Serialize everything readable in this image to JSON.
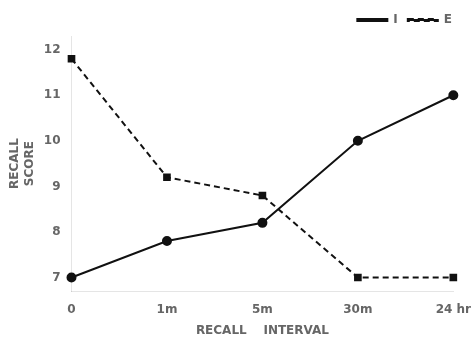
{
  "chart_data": {
    "type": "line",
    "categories": [
      "0",
      "1m",
      "5m",
      "30m",
      "24 hr"
    ],
    "series": [
      {
        "name": "I",
        "color": "#111111",
        "values": [
          7.0,
          7.8,
          8.2,
          10.0,
          11.0
        ],
        "line_style": "solid",
        "marker": "circle"
      },
      {
        "name": "E",
        "color": "#111111",
        "values": [
          11.8,
          9.2,
          8.8,
          7.0,
          7.0
        ],
        "line_style": "dashed",
        "marker": "square"
      }
    ],
    "xlabel": "RECALL    INTERVAL",
    "ylabel": [
      "RECALL",
      "SCORE"
    ],
    "ylim": [
      6.7,
      12.3
    ],
    "yticks": [
      7,
      8,
      9,
      10,
      11,
      12
    ],
    "grid": false,
    "legend": "upper right"
  }
}
